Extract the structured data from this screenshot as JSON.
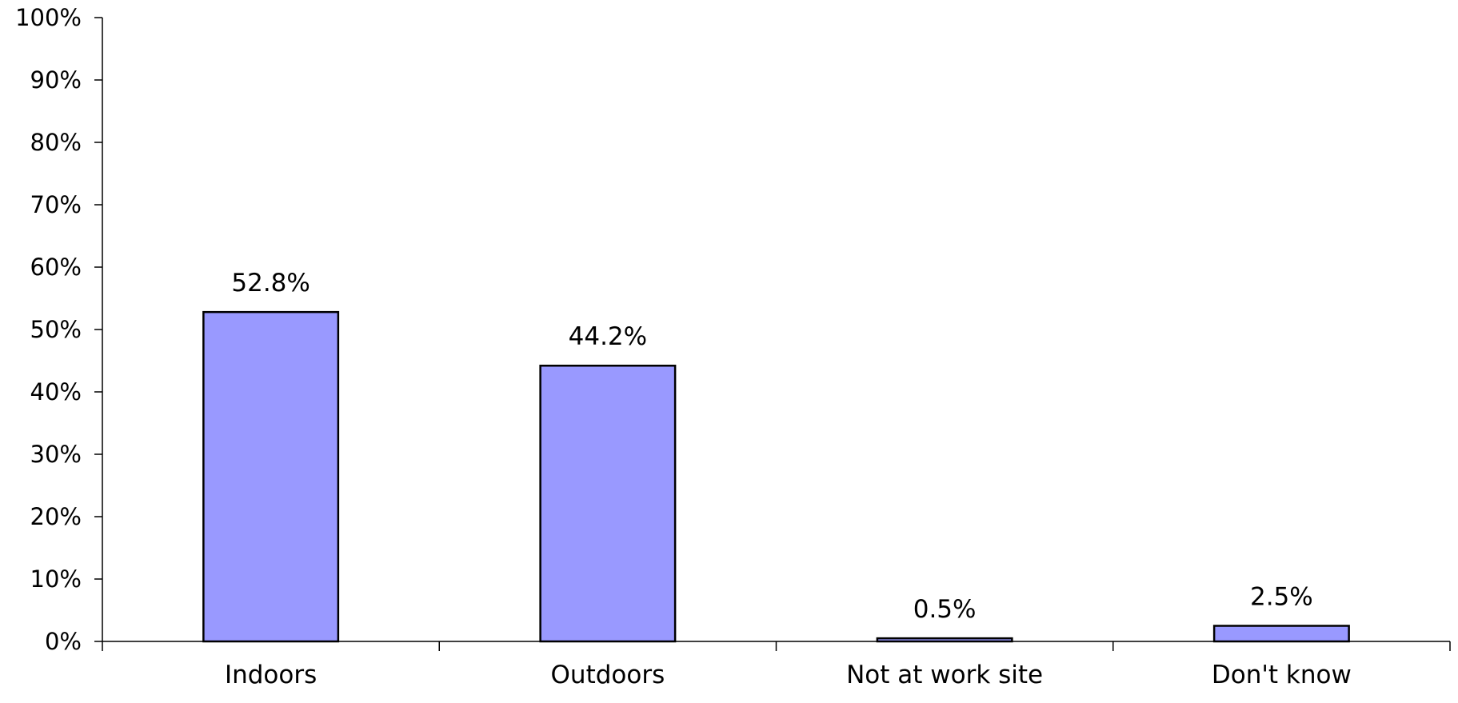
{
  "chart_data": {
    "type": "bar",
    "title": "",
    "xlabel": "",
    "ylabel": "",
    "categories": [
      "Indoors",
      "Outdoors",
      "Not at work site",
      "Don't know"
    ],
    "values": [
      52.8,
      44.2,
      0.5,
      2.5
    ],
    "data_labels": [
      "52.8%",
      "44.2%",
      "0.5%",
      "2.5%"
    ],
    "ylim": [
      0,
      100
    ],
    "yticks": [
      0,
      10,
      20,
      30,
      40,
      50,
      60,
      70,
      80,
      90,
      100
    ],
    "ytick_labels": [
      "0%",
      "10%",
      "20%",
      "30%",
      "40%",
      "50%",
      "60%",
      "70%",
      "80%",
      "90%",
      "100%"
    ],
    "grid": false,
    "legend": "none",
    "colors": {
      "bar_fill": "#9999ff",
      "bar_stroke": "#000000",
      "axis": "#000000",
      "background": "#ffffff"
    }
  }
}
